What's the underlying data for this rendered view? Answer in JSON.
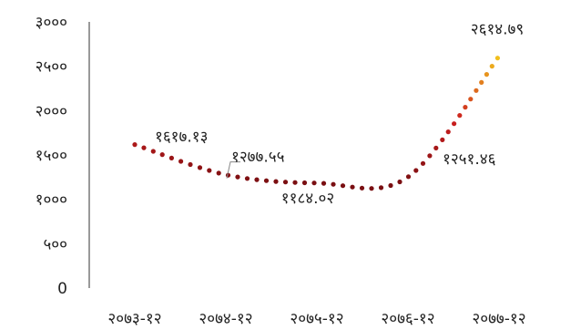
{
  "chart_data": {
    "type": "line",
    "style": "dotted smooth line with colour gradient (dark red to yellow)",
    "categories": [
      "२०७३-१२",
      "२०७४-१२",
      "२०७५-१२",
      "२०७६-१२",
      "२०७७-१२"
    ],
    "values": [
      1617.13,
      1277.55,
      1184.02,
      1251.46,
      2614.79
    ],
    "data_labels": [
      "१६१७.१३",
      "१२७७.५५",
      "११८४.०२",
      "१२५१.४६",
      "२६१४.७९"
    ],
    "y_ticks": [
      "0",
      "५००",
      "१०००",
      "१५००",
      "२०००",
      "२५००",
      "३०००"
    ],
    "y_tick_values": [
      0,
      500,
      1000,
      1500,
      2000,
      2500,
      3000
    ],
    "ylim": [
      0,
      3000
    ],
    "grid": false,
    "legend": "none",
    "colors": {
      "low": "#7a0f12",
      "mid": "#cc1f1f",
      "high": "#f2c41d",
      "axis": "#333333"
    }
  }
}
